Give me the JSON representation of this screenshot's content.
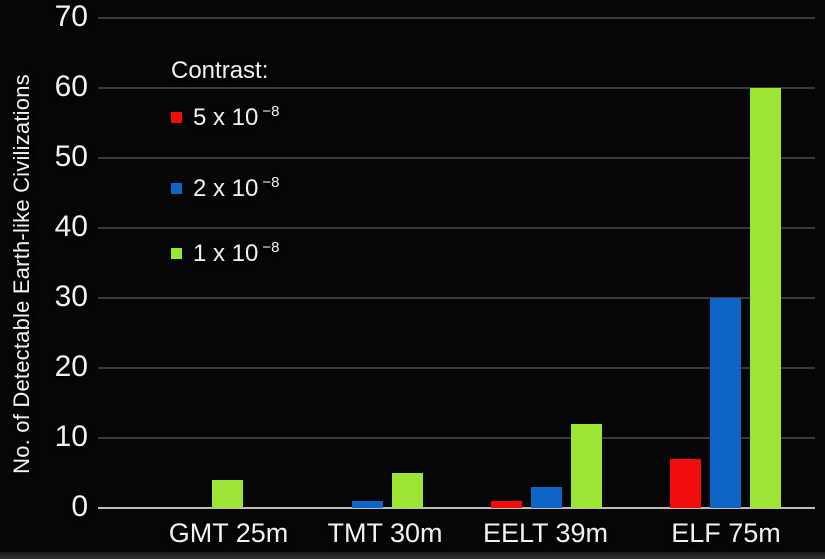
{
  "figure": {
    "background": "#060606",
    "gridline_color": "#3a3a3a",
    "axis_line_color": "#bdbdbd",
    "text_color": "#f2f2f2"
  },
  "chart_data": {
    "type": "bar",
    "title": "",
    "xlabel": "",
    "ylabel": "No. of Detectable Earth-like Civilizations",
    "ylim": [
      0,
      70
    ],
    "y_ticks": [
      0,
      10,
      20,
      30,
      40,
      50,
      60,
      70
    ],
    "grid": "horizontal gridlines on, black background",
    "legend_position": "inside top-left",
    "legend_title": "Contrast:",
    "categories": [
      "GMT 25m",
      "TMT 30m",
      "EELT 39m",
      "ELF 75m"
    ],
    "series": [
      {
        "label_base": "5 x 10",
        "label_sup": "−8",
        "full_label": "5 x 10^-8",
        "color": "#f20d0d",
        "values": [
          0,
          0,
          1,
          7
        ]
      },
      {
        "label_base": "2 x 10",
        "label_sup": "−8",
        "full_label": "2 x 10^-8",
        "color": "#0e65c6",
        "values": [
          0,
          1,
          3,
          30
        ]
      },
      {
        "label_base": "1 x 10",
        "label_sup": "−8",
        "full_label": "1 x 10^-8",
        "color": "#9ce534",
        "values": [
          4,
          5,
          12,
          60
        ]
      }
    ]
  }
}
